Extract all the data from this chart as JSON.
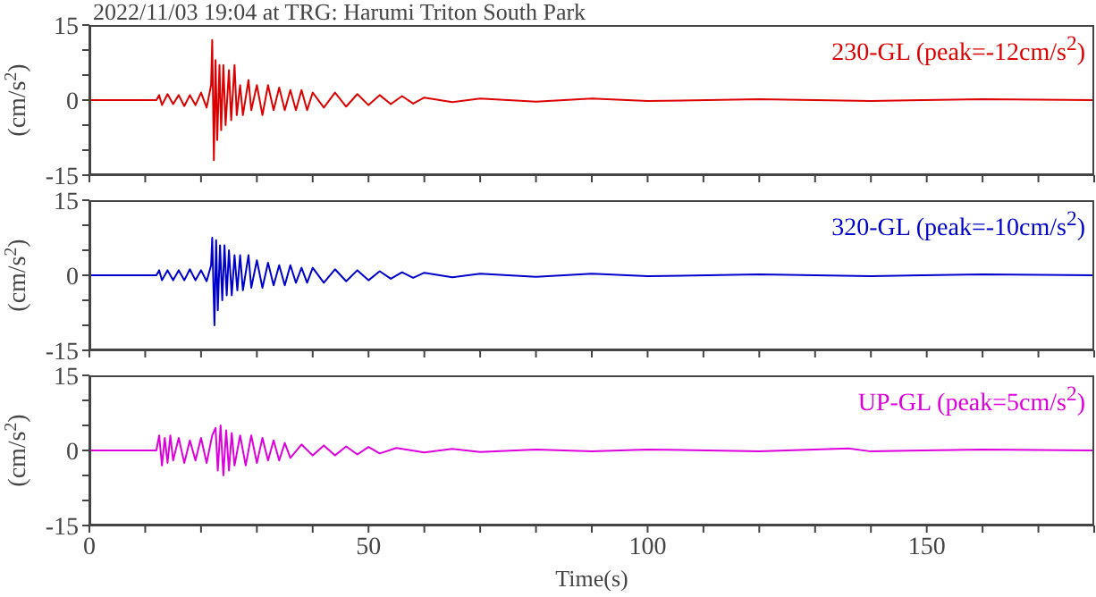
{
  "chart_data": [
    {
      "type": "line",
      "title": "2022/11/03 19:04 at TRG: Harumi Triton South Park",
      "ylabel": "(cm/s$^{2}$)",
      "tick_labels": "y",
      "xlim": [
        0,
        180
      ],
      "xticks": [
        0,
        {
          "value": 10,
          "label": null
        },
        {
          "value": 20,
          "label": null
        },
        {
          "value": 30,
          "label": null
        },
        {
          "value": 40,
          "label": null
        },
        50,
        {
          "value": 60,
          "label": null
        },
        {
          "value": 70,
          "label": null
        },
        {
          "value": 80,
          "label": null
        },
        {
          "value": 90,
          "label": null
        },
        100,
        {
          "value": 110,
          "label": null
        },
        {
          "value": 120,
          "label": null
        },
        {
          "value": 130,
          "label": null
        },
        {
          "value": 140,
          "label": null
        },
        150,
        {
          "value": 160,
          "label": null
        },
        {
          "value": 170,
          "label": null
        },
        180
      ],
      "ylim": [
        -15,
        15
      ],
      "yticks": [
        -15,
        {
          "value": -10,
          "label": null
        },
        {
          "value": -5,
          "label": null
        },
        0,
        {
          "value": 5,
          "label": null
        },
        {
          "value": 10,
          "label": null
        },
        15
      ],
      "x": [
        0,
        12,
        12.5,
        13,
        14,
        15,
        16,
        17,
        18,
        19,
        20,
        21,
        21.8,
        22,
        22.3,
        22.6,
        22.9,
        23.3,
        23.6,
        24,
        24.4,
        25,
        25.4,
        26,
        26.4,
        27,
        27.5,
        28.5,
        29,
        30,
        31,
        32,
        33,
        34,
        35,
        36,
        37,
        38,
        39,
        40,
        42,
        44,
        46,
        48,
        50,
        52,
        54,
        56,
        58,
        60,
        65,
        70,
        80,
        90,
        100,
        120,
        140,
        160,
        180
      ],
      "series": [
        {
          "name": "230-GL (peak=-12cm/s$^{2}$)",
          "color": "#dd0000",
          "values": [
            0,
            0,
            1,
            -1,
            1.2,
            -0.8,
            1,
            -1.2,
            1,
            -1,
            1.5,
            -1.5,
            3,
            12,
            -12,
            8,
            -8,
            7,
            -6,
            7,
            -5,
            6,
            -4,
            7,
            -3,
            3,
            -3,
            4,
            -2,
            3,
            -3,
            3,
            -2,
            2.5,
            -2,
            2,
            -2,
            2,
            -2,
            1.5,
            -1.5,
            1.5,
            -1.3,
            1.2,
            -1,
            1,
            -0.8,
            0.8,
            -0.7,
            0.5,
            -0.4,
            0.3,
            -0.3,
            0.3,
            -0.2,
            0.2,
            -0.2,
            0.2,
            0
          ]
        }
      ]
    },
    {
      "type": "line",
      "ylabel": "(cm/s$^{2}$)",
      "tick_labels": "y",
      "xlim": [
        0,
        180
      ],
      "xticks": [
        0,
        {
          "value": 10,
          "label": null
        },
        {
          "value": 20,
          "label": null
        },
        {
          "value": 30,
          "label": null
        },
        {
          "value": 40,
          "label": null
        },
        50,
        {
          "value": 60,
          "label": null
        },
        {
          "value": 70,
          "label": null
        },
        {
          "value": 80,
          "label": null
        },
        {
          "value": 90,
          "label": null
        },
        100,
        {
          "value": 110,
          "label": null
        },
        {
          "value": 120,
          "label": null
        },
        {
          "value": 130,
          "label": null
        },
        {
          "value": 140,
          "label": null
        },
        150,
        {
          "value": 160,
          "label": null
        },
        {
          "value": 170,
          "label": null
        },
        180
      ],
      "ylim": [
        -15,
        15
      ],
      "yticks": [
        -15,
        {
          "value": -10,
          "label": null
        },
        {
          "value": -5,
          "label": null
        },
        0,
        {
          "value": 5,
          "label": null
        },
        {
          "value": 10,
          "label": null
        },
        15
      ],
      "x": [
        0,
        12,
        12.5,
        13,
        14,
        15,
        16,
        17,
        18,
        19,
        20,
        21,
        21.8,
        22,
        22.4,
        22.7,
        23,
        23.4,
        23.8,
        24.2,
        24.6,
        25,
        25.5,
        26,
        26.5,
        27,
        27.5,
        28.5,
        29,
        30,
        31,
        32,
        33,
        34,
        35,
        36,
        37,
        38,
        39,
        40,
        42,
        44,
        46,
        48,
        50,
        52,
        54,
        56,
        58,
        60,
        65,
        70,
        80,
        90,
        100,
        120,
        140,
        160,
        180
      ],
      "series": [
        {
          "name": "320-GL (peak=-10cm/s$^{2}$)",
          "color": "#0000cc",
          "values": [
            0,
            0,
            1,
            -1,
            1,
            -1,
            1,
            -1,
            1.2,
            -1,
            1,
            -1.2,
            2,
            7.5,
            -10,
            7,
            -7,
            6,
            -5,
            6,
            -4,
            5,
            -4,
            4,
            -3,
            4,
            -3,
            4,
            -2.5,
            3,
            -2.5,
            2.5,
            -2,
            2,
            -2,
            2,
            -1.5,
            1.5,
            -1.5,
            1.5,
            -1.5,
            1.2,
            -1.2,
            1,
            -1,
            0.8,
            -0.7,
            0.6,
            -0.5,
            0.5,
            -0.4,
            0.3,
            -0.3,
            0.3,
            -0.2,
            0.2,
            -0.2,
            0.2,
            0
          ]
        }
      ]
    },
    {
      "type": "line",
      "ylabel": "(cm/s$^{2}$)",
      "xlabel": "Time(s)",
      "xlim": [
        0,
        180
      ],
      "xticks": [
        0,
        {
          "value": 10,
          "label": null
        },
        {
          "value": 20,
          "label": null
        },
        {
          "value": 30,
          "label": null
        },
        {
          "value": 40,
          "label": null
        },
        50,
        {
          "value": 60,
          "label": null
        },
        {
          "value": 70,
          "label": null
        },
        {
          "value": 80,
          "label": null
        },
        {
          "value": 90,
          "label": null
        },
        100,
        {
          "value": 110,
          "label": null
        },
        {
          "value": 120,
          "label": null
        },
        {
          "value": 130,
          "label": null
        },
        {
          "value": 140,
          "label": null
        },
        150,
        {
          "value": 160,
          "label": null
        },
        {
          "value": 170,
          "label": null
        },
        {
          "value": 180,
          "label": null
        }
      ],
      "ylim": [
        -15,
        15
      ],
      "yticks": [
        -15,
        {
          "value": -10,
          "label": null
        },
        {
          "value": -5,
          "label": null
        },
        0,
        {
          "value": 5,
          "label": null
        },
        {
          "value": 10,
          "label": null
        },
        15
      ],
      "x": [
        0,
        12,
        12.5,
        13,
        13.5,
        14,
        14.5,
        15,
        16,
        17,
        18,
        19,
        20,
        21,
        22,
        22.6,
        23,
        23.5,
        24,
        24.5,
        25,
        25.5,
        26,
        27,
        28,
        29,
        30,
        31,
        32,
        33,
        34,
        35,
        36,
        38,
        40,
        42,
        44,
        46,
        48,
        50,
        52,
        55,
        60,
        65,
        70,
        80,
        90,
        100,
        120,
        136,
        140,
        160,
        180
      ],
      "series": [
        {
          "name": "UP-GL (peak=5cm/s$^{2}$)",
          "color": "#dd00dd",
          "values": [
            0,
            0,
            3,
            -3,
            2.5,
            -2.5,
            3,
            -2,
            2.5,
            -2.5,
            2,
            -2,
            2.5,
            -2.5,
            3,
            4.5,
            -4,
            5,
            -5,
            4,
            -4,
            3.5,
            -3,
            3,
            -3,
            3,
            -2.5,
            2.5,
            -2,
            2,
            -2,
            1.5,
            -1.5,
            1.2,
            -1,
            1,
            -1,
            0.8,
            -0.8,
            0.7,
            -0.6,
            0.5,
            -0.4,
            0.3,
            -0.3,
            0.2,
            -0.2,
            0.2,
            -0.2,
            0.4,
            -0.2,
            0.2,
            0
          ]
        }
      ]
    }
  ]
}
